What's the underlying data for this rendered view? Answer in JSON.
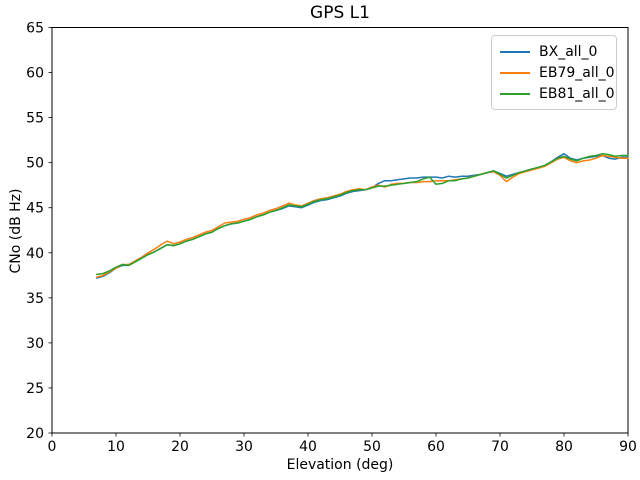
{
  "chart_data": {
    "type": "line",
    "title": "GPS L1",
    "xlabel": "Elevation (deg)",
    "ylabel": "CNo (dB Hz)",
    "xlim": [
      0,
      90
    ],
    "ylim": [
      20,
      65
    ],
    "xticks": [
      0,
      10,
      20,
      30,
      40,
      50,
      60,
      70,
      80,
      90
    ],
    "yticks": [
      20,
      25,
      30,
      35,
      40,
      45,
      50,
      55,
      60,
      65
    ],
    "grid": false,
    "legend_position": "upper right",
    "axis_color": "#000000",
    "x": [
      7,
      8,
      9,
      10,
      11,
      12,
      13,
      14,
      15,
      16,
      17,
      18,
      19,
      20,
      21,
      22,
      23,
      24,
      25,
      26,
      27,
      28,
      29,
      30,
      31,
      32,
      33,
      34,
      35,
      36,
      37,
      38,
      39,
      40,
      41,
      42,
      43,
      44,
      45,
      46,
      47,
      48,
      49,
      50,
      51,
      52,
      53,
      54,
      55,
      56,
      57,
      58,
      59,
      60,
      61,
      62,
      63,
      64,
      65,
      66,
      67,
      68,
      69,
      70,
      71,
      72,
      73,
      74,
      75,
      76,
      77,
      78,
      79,
      80,
      81,
      82,
      83,
      84,
      85,
      86,
      87,
      88,
      89,
      90
    ],
    "series": [
      {
        "name": "BX_all_0",
        "color": "#1f77b4",
        "values": [
          37.2,
          37.4,
          37.8,
          38.3,
          38.6,
          38.6,
          39.0,
          39.4,
          39.8,
          40.1,
          40.5,
          40.9,
          40.8,
          41.0,
          41.3,
          41.5,
          41.8,
          42.1,
          42.3,
          42.7,
          43.0,
          43.2,
          43.3,
          43.5,
          43.7,
          44.0,
          44.2,
          44.5,
          44.7,
          44.9,
          45.2,
          45.1,
          45.0,
          45.3,
          45.6,
          45.8,
          45.9,
          46.1,
          46.3,
          46.6,
          46.8,
          46.9,
          47.0,
          47.2,
          47.7,
          48.0,
          48.0,
          48.1,
          48.2,
          48.3,
          48.3,
          48.4,
          48.4,
          48.4,
          48.3,
          48.5,
          48.4,
          48.5,
          48.5,
          48.6,
          48.7,
          48.9,
          49.1,
          48.8,
          48.5,
          48.7,
          48.9,
          49.1,
          49.3,
          49.4,
          49.7,
          50.1,
          50.6,
          51.0,
          50.5,
          50.3,
          50.5,
          50.6,
          50.7,
          50.8,
          50.5,
          50.4,
          50.6,
          50.6
        ]
      },
      {
        "name": "EB79_all_0",
        "color": "#ff7f0e",
        "values": [
          37.3,
          37.5,
          37.9,
          38.3,
          38.7,
          38.7,
          39.1,
          39.5,
          40.0,
          40.4,
          40.9,
          41.3,
          41.0,
          41.2,
          41.5,
          41.7,
          42.0,
          42.3,
          42.5,
          42.9,
          43.3,
          43.4,
          43.5,
          43.7,
          43.9,
          44.2,
          44.4,
          44.7,
          44.9,
          45.2,
          45.5,
          45.3,
          45.2,
          45.5,
          45.8,
          46.0,
          46.1,
          46.3,
          46.5,
          46.8,
          47.0,
          47.1,
          47.0,
          47.3,
          47.5,
          47.3,
          47.6,
          47.7,
          47.7,
          47.8,
          47.8,
          47.9,
          47.9,
          48.0,
          48.0,
          48.0,
          48.1,
          48.2,
          48.3,
          48.5,
          48.7,
          48.9,
          49.0,
          48.6,
          47.9,
          48.4,
          48.8,
          49.0,
          49.2,
          49.4,
          49.6,
          50.0,
          50.4,
          50.6,
          50.2,
          50.0,
          50.2,
          50.3,
          50.5,
          50.8,
          50.7,
          50.6,
          50.5,
          50.5
        ]
      },
      {
        "name": "EB81_all_0",
        "color": "#2ca02c",
        "values": [
          37.6,
          37.7,
          38.0,
          38.4,
          38.7,
          38.6,
          39.0,
          39.4,
          39.8,
          40.1,
          40.5,
          40.9,
          40.8,
          41.0,
          41.3,
          41.5,
          41.8,
          42.1,
          42.3,
          42.7,
          43.0,
          43.2,
          43.3,
          43.5,
          43.7,
          44.0,
          44.2,
          44.5,
          44.7,
          45.0,
          45.3,
          45.2,
          45.1,
          45.4,
          45.7,
          45.9,
          46.0,
          46.2,
          46.4,
          46.7,
          46.9,
          47.0,
          47.0,
          47.2,
          47.4,
          47.4,
          47.5,
          47.6,
          47.7,
          47.8,
          47.9,
          48.2,
          48.4,
          47.6,
          47.7,
          48.0,
          48.0,
          48.2,
          48.3,
          48.5,
          48.7,
          48.9,
          49.1,
          48.7,
          48.3,
          48.6,
          48.9,
          49.1,
          49.3,
          49.5,
          49.7,
          50.1,
          50.5,
          50.7,
          50.4,
          50.2,
          50.5,
          50.7,
          50.8,
          51.0,
          50.9,
          50.7,
          50.8,
          50.8
        ]
      }
    ]
  }
}
